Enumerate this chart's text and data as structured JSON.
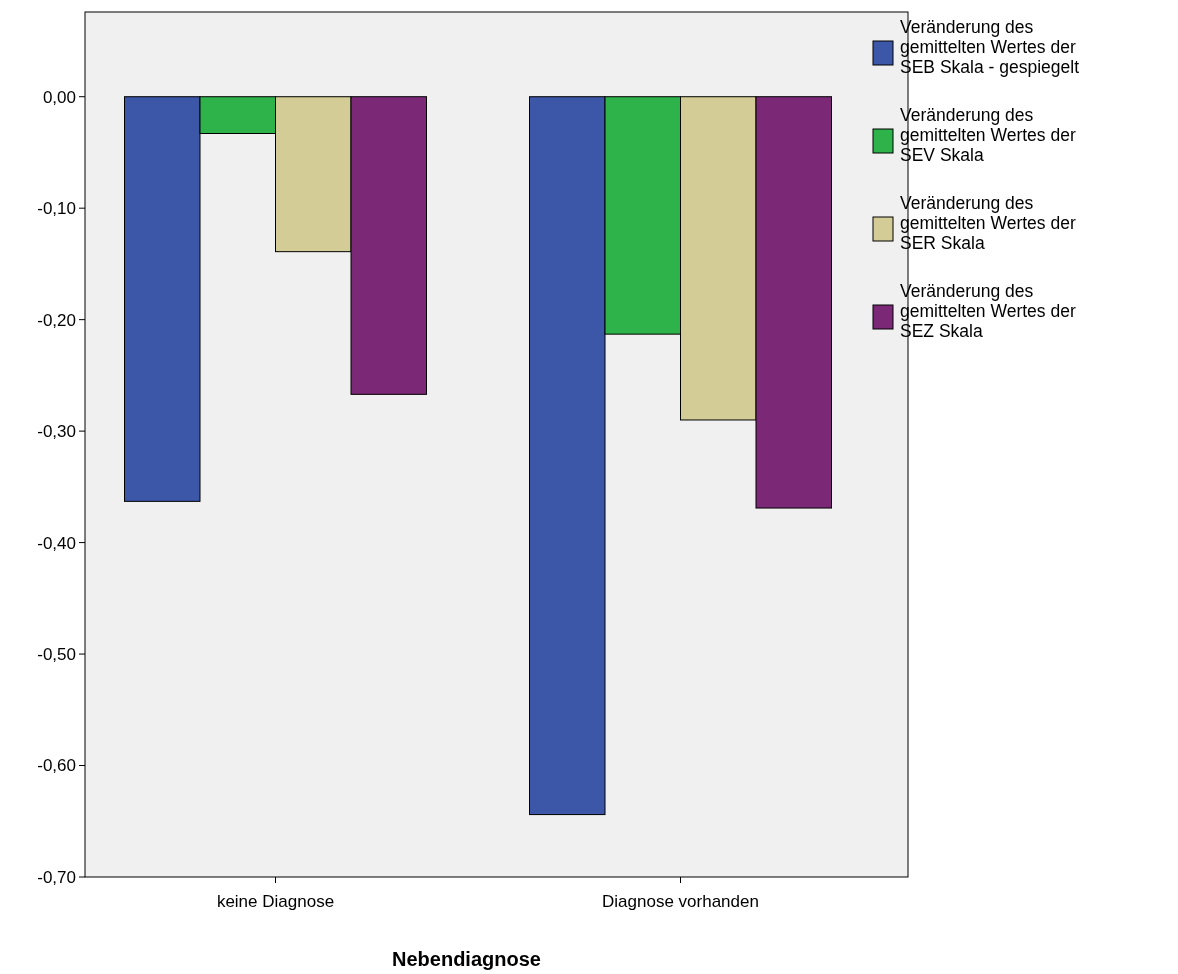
{
  "chart_data": {
    "type": "bar",
    "xlabel": "Nebendiagnose",
    "categories": [
      "keine Diagnose",
      "Diagnose vorhanden"
    ],
    "series": [
      {
        "name": "Veränderung des gemittelten Wertes der SEB Skala - gespiegelt",
        "color": "#3c56a8",
        "values": [
          -0.363,
          -0.644
        ]
      },
      {
        "name": "Veränderung des gemittelten Wertes der SEV Skala",
        "color": "#2db34a",
        "values": [
          -0.033,
          -0.213
        ]
      },
      {
        "name": "Veränderung des gemittelten Wertes der SER Skala",
        "color": "#d4cc96",
        "values": [
          -0.139,
          -0.29
        ]
      },
      {
        "name": "Veränderung des gemittelten Wertes der SEZ Skala",
        "color": "#7b2877",
        "values": [
          -0.267,
          -0.369
        ]
      }
    ],
    "ylim": [
      -0.7,
      0.076
    ],
    "yticks": [
      {
        "value": 0,
        "label": "0,00"
      },
      {
        "value": -0.1,
        "label": "-0,10"
      },
      {
        "value": -0.2,
        "label": "-0,20"
      },
      {
        "value": -0.3,
        "label": "-0,30"
      },
      {
        "value": -0.4,
        "label": "-0,40"
      },
      {
        "value": -0.5,
        "label": "-0,50"
      },
      {
        "value": -0.6,
        "label": "-0,60"
      },
      {
        "value": -0.7,
        "label": "-0,70"
      }
    ],
    "grid": false,
    "legend": "right"
  }
}
